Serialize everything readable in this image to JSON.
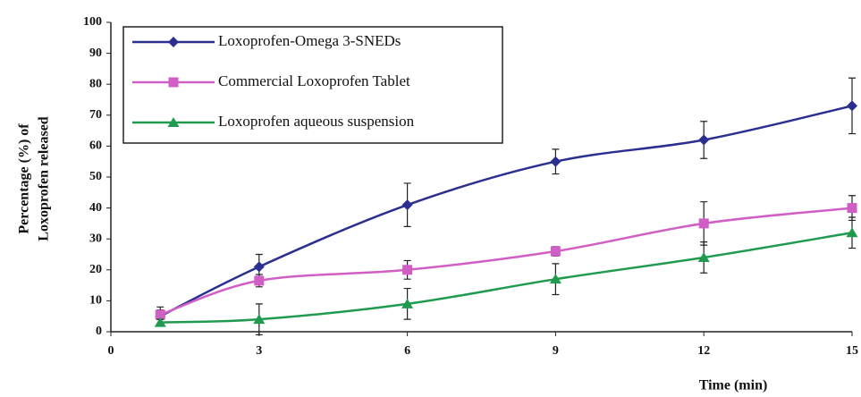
{
  "chart_data": {
    "type": "line",
    "x_label": "Time (min)",
    "y_label": [
      "Percentage (%) of",
      "Loxoprofen released"
    ],
    "x": [
      1,
      3,
      6,
      9,
      12,
      15
    ],
    "xlim": [
      0,
      15
    ],
    "xticks": [
      0,
      3,
      6,
      9,
      12,
      15
    ],
    "ylim": [
      0,
      100
    ],
    "yticks": [
      0,
      10,
      20,
      30,
      40,
      50,
      60,
      70,
      80,
      90,
      100
    ],
    "legend": "upper left",
    "grid": false,
    "smooth": true,
    "series": [
      {
        "name": "Loxoprofen-Omega 3-SNEDs",
        "color": "#2b2f8f",
        "marker": "diamond",
        "values": [
          5,
          21,
          41,
          55,
          62,
          73
        ],
        "errors": [
          3,
          4,
          7,
          4,
          6,
          9
        ]
      },
      {
        "name": "Commercial Loxoprofen Tablet",
        "color": "#d05ec4",
        "marker": "square",
        "values": [
          5.5,
          16.5,
          20,
          26,
          35,
          40
        ],
        "errors": [
          1.5,
          2,
          3,
          1.5,
          7,
          4
        ]
      },
      {
        "name": "Loxoprofen aqueous suspension",
        "color": "#1f9a4e",
        "marker": "triangle",
        "values": [
          3,
          4,
          9,
          17,
          24,
          32
        ],
        "errors": [
          1,
          5,
          5,
          5,
          5,
          5
        ]
      }
    ]
  }
}
